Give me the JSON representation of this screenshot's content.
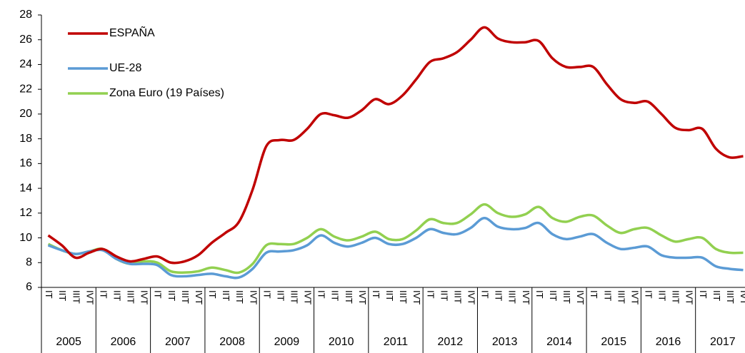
{
  "chart_data": {
    "type": "line",
    "categories": [
      "IT",
      "IIT",
      "IIIT",
      "IVT",
      "IT",
      "IIT",
      "IIIT",
      "IVT",
      "IT",
      "IIT",
      "IIIT",
      "IVT",
      "IT",
      "IIT",
      "IIIT",
      "IVT",
      "IT",
      "IIT",
      "IIIT",
      "IVT",
      "IT",
      "IIT",
      "IIIT",
      "IVT",
      "IT",
      "IIT",
      "IIIT",
      "IVT",
      "IT",
      "IIT",
      "IIIT",
      "IVT",
      "IT",
      "IIT",
      "IIIT",
      "IVT",
      "IT",
      "IIT",
      "IIIT",
      "IVT",
      "IT",
      "IIT",
      "IIIT",
      "IVT",
      "IT",
      "IIT",
      "IIIT",
      "IVT",
      "IT",
      "IIT",
      "IIIT",
      "IVT"
    ],
    "years": [
      "2005",
      "2006",
      "2007",
      "2008",
      "2009",
      "2010",
      "2011",
      "2012",
      "2013",
      "2014",
      "2015",
      "2016",
      "2017"
    ],
    "series": [
      {
        "name": "ESPAÑA",
        "color": "#c00000",
        "values": [
          10.2,
          9.4,
          8.4,
          8.8,
          9.1,
          8.5,
          8.1,
          8.3,
          8.5,
          8.0,
          8.1,
          8.6,
          9.6,
          10.4,
          11.3,
          13.9,
          17.4,
          17.9,
          17.9,
          18.8,
          20.0,
          19.9,
          19.7,
          20.3,
          21.2,
          20.8,
          21.5,
          22.8,
          24.2,
          24.5,
          25.0,
          26.0,
          27.0,
          26.1,
          25.8,
          25.8,
          25.9,
          24.5,
          23.8,
          23.8,
          23.8,
          22.4,
          21.2,
          20.9,
          21.0,
          20.0,
          18.9,
          18.7,
          18.8,
          17.2,
          16.5,
          16.6
        ]
      },
      {
        "name": "UE-28",
        "color": "#5b9bd5",
        "values": [
          9.4,
          9.0,
          8.7,
          8.9,
          9.0,
          8.3,
          7.9,
          7.9,
          7.8,
          7.0,
          6.9,
          7.0,
          7.1,
          6.9,
          6.8,
          7.5,
          8.8,
          8.9,
          9.0,
          9.4,
          10.2,
          9.6,
          9.3,
          9.6,
          10.0,
          9.5,
          9.5,
          10.0,
          10.7,
          10.4,
          10.3,
          10.8,
          11.6,
          10.9,
          10.7,
          10.8,
          11.2,
          10.3,
          9.9,
          10.1,
          10.3,
          9.6,
          9.1,
          9.2,
          9.3,
          8.6,
          8.4,
          8.4,
          8.4,
          7.7,
          7.5,
          7.4
        ]
      },
      {
        "name": "Zona Euro (19 Países)",
        "color": "#92d050",
        "values": [
          9.5,
          9.0,
          8.7,
          8.9,
          9.1,
          8.3,
          7.9,
          8.1,
          8.0,
          7.3,
          7.2,
          7.3,
          7.6,
          7.4,
          7.2,
          7.9,
          9.4,
          9.5,
          9.5,
          10.0,
          10.7,
          10.1,
          9.8,
          10.1,
          10.5,
          9.9,
          9.9,
          10.6,
          11.5,
          11.2,
          11.2,
          11.9,
          12.7,
          12.0,
          11.7,
          11.9,
          12.5,
          11.6,
          11.3,
          11.7,
          11.8,
          11.0,
          10.4,
          10.7,
          10.8,
          10.2,
          9.7,
          9.9,
          10.0,
          9.1,
          8.8,
          8.8
        ]
      }
    ],
    "ylim": [
      6,
      28
    ],
    "yticks": [
      6,
      8,
      10,
      12,
      14,
      16,
      18,
      20,
      22,
      24,
      26,
      28
    ],
    "legend": "upper left"
  }
}
